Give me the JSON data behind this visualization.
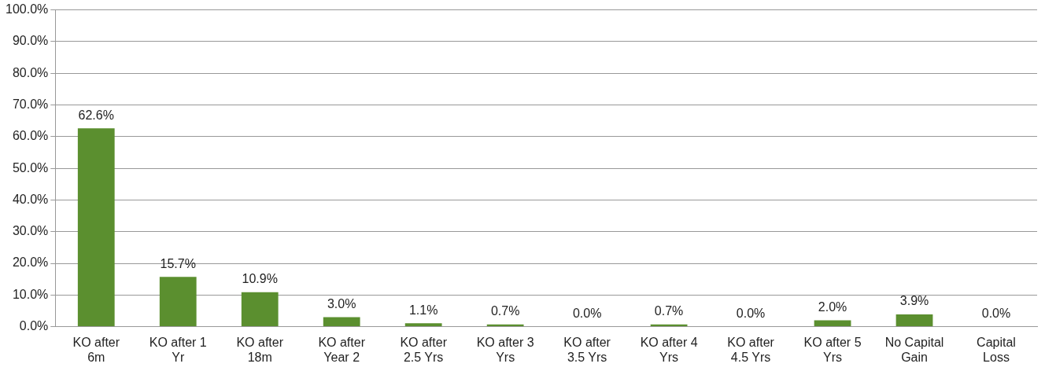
{
  "chart_data": {
    "type": "bar",
    "categories": [
      "KO after 6m",
      "KO after 1 Yr",
      "KO after 18m",
      "KO after Year 2",
      "KO after 2.5 Yrs",
      "KO after 3 Yrs",
      "KO after 3.5 Yrs",
      "KO after 4 Yrs",
      "KO after 4.5 Yrs",
      "KO after 5 Yrs",
      "No Capital Gain",
      "Capital Loss"
    ],
    "values": [
      62.6,
      15.7,
      10.9,
      3.0,
      1.1,
      0.7,
      0.0,
      0.7,
      0.0,
      2.0,
      3.9,
      0.0
    ],
    "value_labels": [
      "62.6%",
      "15.7%",
      "10.9%",
      "3.0%",
      "1.1%",
      "0.7%",
      "0.0%",
      "0.7%",
      "0.0%",
      "2.0%",
      "3.9%",
      "0.0%"
    ],
    "color": "#5b8f2f",
    "ylim": [
      0,
      100
    ],
    "yticks": [
      {
        "value": 0,
        "label": "0.0%"
      },
      {
        "value": 10,
        "label": "10.0%"
      },
      {
        "value": 20,
        "label": "20.0%"
      },
      {
        "value": 30,
        "label": "30.0%"
      },
      {
        "value": 40,
        "label": "40.0%"
      },
      {
        "value": 50,
        "label": "50.0%"
      },
      {
        "value": 60,
        "label": "60.0%"
      },
      {
        "value": 70,
        "label": "70.0%"
      },
      {
        "value": 80,
        "label": "80.0%"
      },
      {
        "value": 90,
        "label": "90.0%"
      },
      {
        "value": 100,
        "label": "100.0%"
      }
    ],
    "grid": "y",
    "legend": false
  }
}
